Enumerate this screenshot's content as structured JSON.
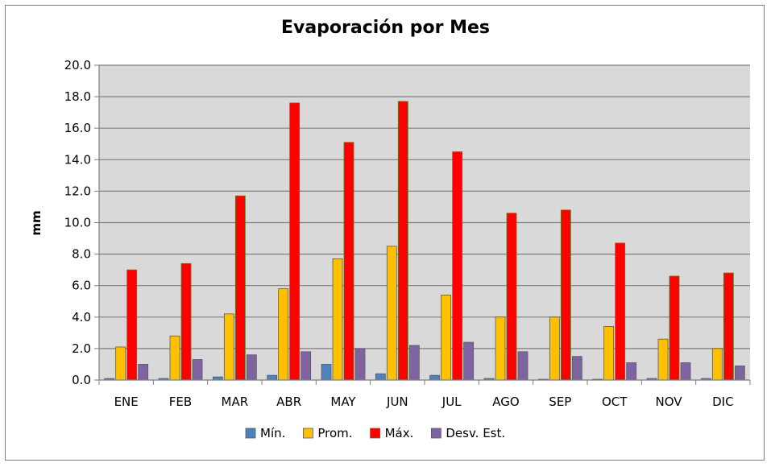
{
  "chart_data": {
    "type": "bar",
    "title": "Evaporación por Mes",
    "xlabel": "",
    "ylabel": "mm",
    "ylim": [
      0,
      20
    ],
    "ytick_step": 2,
    "ytick_format": "0.0",
    "grid": true,
    "legend_position": "bottom",
    "categories": [
      "ENE",
      "FEB",
      "MAR",
      "ABR",
      "MAY",
      "JUN",
      "JUL",
      "AGO",
      "SEP",
      "OCT",
      "NOV",
      "DIC"
    ],
    "series": [
      {
        "name": "Mín.",
        "color": "#4f81bd",
        "values": [
          0.1,
          0.1,
          0.2,
          0.3,
          1.0,
          0.4,
          0.3,
          0.1,
          0.05,
          0.05,
          0.1,
          0.1
        ]
      },
      {
        "name": "Prom.",
        "color": "#ffc000",
        "values": [
          2.1,
          2.8,
          4.2,
          5.8,
          7.7,
          8.5,
          5.4,
          4.0,
          4.0,
          3.4,
          2.6,
          2.0
        ]
      },
      {
        "name": "Máx.",
        "color": "#ff0000",
        "values": [
          7.0,
          7.4,
          11.7,
          17.6,
          15.1,
          17.7,
          14.5,
          10.6,
          10.8,
          8.7,
          6.6,
          6.8
        ]
      },
      {
        "name": "Desv. Est.",
        "color": "#8064a2",
        "values": [
          1.0,
          1.3,
          1.6,
          1.8,
          2.0,
          2.2,
          2.4,
          1.8,
          1.5,
          1.1,
          1.1,
          0.9
        ]
      }
    ]
  }
}
